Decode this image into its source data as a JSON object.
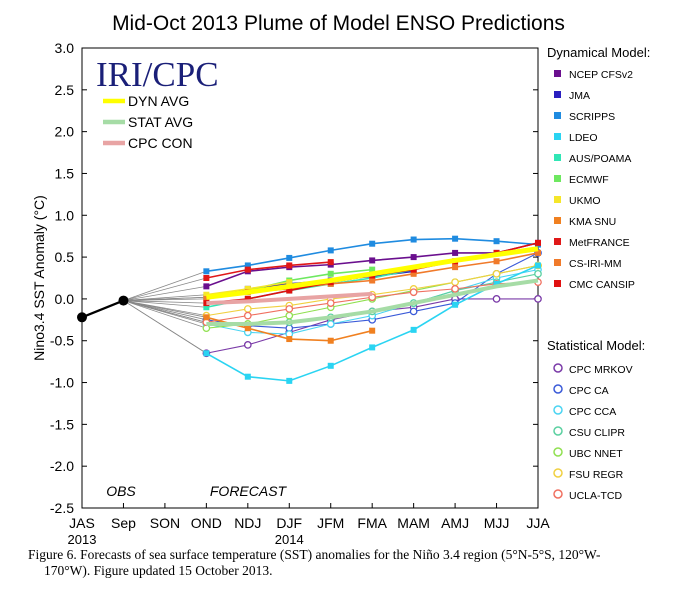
{
  "chart_data": {
    "type": "line",
    "title": "Mid-Oct 2013 Plume of Model ENSO Predictions",
    "ylabel": "Nino3.4 SST Anomaly (°C)",
    "ylim": [
      -2.5,
      3.0
    ],
    "yticks": [
      "3.0",
      "2.5",
      "2.0",
      "1.5",
      "1.0",
      "0.5",
      "0.0",
      "-0.5",
      "-1.0",
      "-1.5",
      "-2.0",
      "-2.5"
    ],
    "categories": [
      "JAS",
      "Sep",
      "SON",
      "OND",
      "NDJ",
      "DJF",
      "JFM",
      "FMA",
      "MAM",
      "AMJ",
      "MJJ",
      "JJA"
    ],
    "year_labels": [
      {
        "category": "JAS",
        "text": "2013"
      },
      {
        "category": "DJF",
        "text": "2014"
      }
    ],
    "region_labels": {
      "obs": "OBS",
      "forecast": "FORECAST"
    },
    "logo": "IRI/CPC",
    "observed": {
      "x": [
        "JAS",
        "Sep"
      ],
      "values": [
        -0.22,
        -0.02
      ]
    },
    "legend_left": [
      {
        "name": "DYN AVG",
        "color": "#ffff00"
      },
      {
        "name": "STAT AVG",
        "color": "#a6dca6"
      },
      {
        "name": "CPC CON",
        "color": "#e8a4a4"
      }
    ],
    "dynamical_title": "Dynamical Model:",
    "statistical_title": "Statistical Model:",
    "dynamical_models": [
      {
        "name": "NCEP CFSv2",
        "color": "#6a0f8e",
        "values": [
          0.15,
          0.33,
          0.38,
          0.41,
          0.46,
          0.5,
          0.55,
          0.55,
          0.67
        ]
      },
      {
        "name": "JMA",
        "color": "#2a1fc0",
        "values": [
          0.02,
          0.12,
          0.18,
          0.22,
          0.27,
          0.33,
          null,
          null,
          null
        ]
      },
      {
        "name": "SCRIPPS",
        "color": "#1f8be0",
        "values": [
          0.33,
          0.4,
          0.49,
          0.58,
          0.66,
          0.71,
          0.72,
          0.69,
          0.65
        ]
      },
      {
        "name": "LDEO",
        "color": "#2ad4f2",
        "values": [
          -0.65,
          -0.93,
          -0.98,
          -0.8,
          -0.58,
          -0.37,
          -0.07,
          0.18,
          0.4
        ]
      },
      {
        "name": "AUS/POAMA",
        "color": "#30e6b5",
        "values": [
          -0.1,
          0.0,
          0.1,
          0.18,
          0.25,
          0.35,
          null,
          null,
          null
        ]
      },
      {
        "name": "ECMWF",
        "color": "#6ee860",
        "values": [
          0.02,
          0.1,
          0.22,
          0.3,
          0.35,
          null,
          null,
          null,
          null
        ]
      },
      {
        "name": "UKMO",
        "color": "#f5e62a",
        "values": [
          0.05,
          0.12,
          0.2,
          null,
          null,
          null,
          null,
          null,
          null
        ]
      },
      {
        "name": "KMA SNU",
        "color": "#f08020",
        "values": [
          -0.22,
          -0.35,
          -0.48,
          -0.5,
          -0.38,
          null,
          null,
          null,
          null
        ]
      },
      {
        "name": "MetFRANCE",
        "color": "#e01818",
        "values": [
          0.25,
          0.35,
          0.4,
          0.44,
          null,
          null,
          null,
          null,
          null
        ]
      },
      {
        "name": "CS-IRI-MM",
        "color": "#f07a2a",
        "values": [
          0.0,
          0.08,
          0.12,
          0.18,
          0.22,
          0.3,
          0.38,
          0.45,
          0.55
        ]
      },
      {
        "name": "CMC CANSIP",
        "color": "#e01010",
        "values": [
          -0.05,
          0.0,
          0.1,
          0.2,
          0.28,
          0.35,
          0.45,
          0.55,
          0.67
        ]
      }
    ],
    "statistical_models": [
      {
        "name": "CPC MRKOV",
        "color": "#7a3aa8",
        "values": [
          -0.65,
          -0.55,
          -0.4,
          -0.25,
          -0.15,
          -0.1,
          0.0,
          0.0,
          0.0
        ]
      },
      {
        "name": "CPC CA",
        "color": "#3a5ad8",
        "values": [
          -0.25,
          -0.32,
          -0.35,
          -0.3,
          -0.25,
          -0.15,
          -0.05,
          0.3,
          0.55
        ]
      },
      {
        "name": "CPC CCA",
        "color": "#4ad4f2",
        "values": [
          -0.3,
          -0.4,
          -0.42,
          -0.3,
          -0.2,
          -0.05,
          0.1,
          0.25,
          0.35
        ]
      },
      {
        "name": "CSU CLIPR",
        "color": "#5ad0a0",
        "values": [
          -0.28,
          -0.3,
          -0.28,
          -0.22,
          -0.15,
          -0.05,
          0.1,
          0.2,
          0.3
        ]
      },
      {
        "name": "UBC NNET",
        "color": "#90e050",
        "values": [
          -0.35,
          -0.3,
          -0.2,
          -0.1,
          0.0,
          0.1,
          0.2,
          0.3,
          0.4
        ]
      },
      {
        "name": "FSU REGR",
        "color": "#f0d040",
        "values": [
          -0.2,
          -0.12,
          -0.08,
          0.0,
          0.05,
          0.12,
          0.2,
          0.3,
          0.4
        ]
      },
      {
        "name": "UCLA-TCD",
        "color": "#f07060",
        "values": [
          -0.28,
          -0.2,
          -0.12,
          -0.05,
          0.02,
          0.08,
          0.12,
          0.18,
          0.2
        ]
      }
    ],
    "averages": {
      "dyn_avg": [
        0.02,
        0.08,
        0.15,
        0.22,
        0.3,
        0.38,
        0.46,
        0.53,
        0.6
      ],
      "stat_avg": [
        -0.3,
        -0.3,
        -0.28,
        -0.22,
        -0.15,
        -0.05,
        0.05,
        0.15,
        0.22
      ],
      "cpc_con": [
        -0.05,
        -0.03,
        0.0,
        0.03,
        0.06,
        null,
        null,
        null,
        null
      ]
    },
    "grid": false
  },
  "caption": {
    "line1": "Figure 6. Forecasts of sea surface temperature (SST) anomalies for the Niño 3.4 region (5°N-5°S, 120°W-",
    "line2": "170°W).  Figure updated 15 October 2013."
  }
}
